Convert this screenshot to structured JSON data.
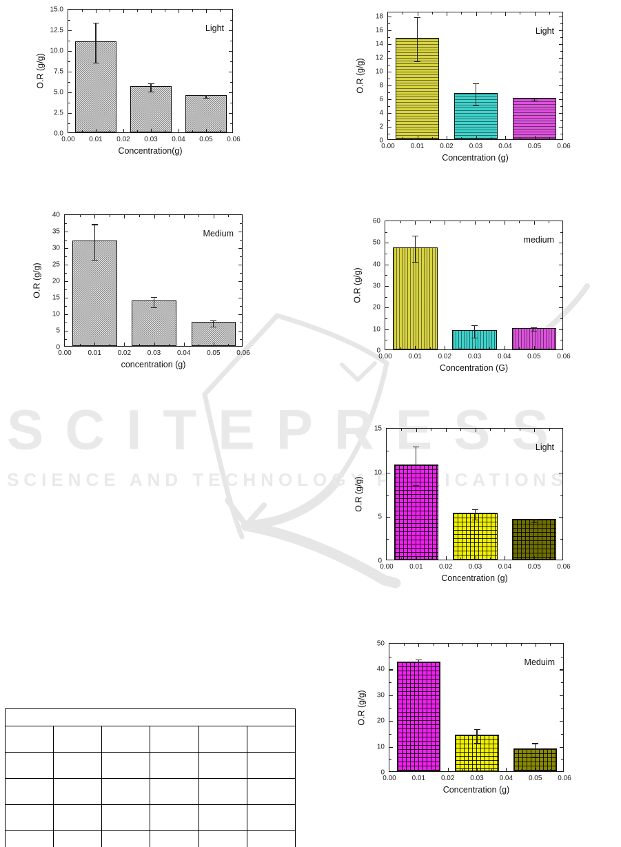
{
  "watermark": {
    "line1": "SCITEPRESS",
    "line2": "SCIENCE AND TECHNOLOGY PUBLICATIONS",
    "color": "#e9e9e9"
  },
  "chart_data": [
    {
      "id": "c1",
      "type": "bar",
      "legend": "Light",
      "xlabel": "Concentration(g)",
      "ylabel": "O.R (g/g)",
      "x": [
        0.01,
        0.03,
        0.05
      ],
      "values": [
        11.0,
        5.6,
        4.5
      ],
      "errors": [
        2.4,
        0.5,
        0.15
      ],
      "xlim": [
        0,
        0.06
      ],
      "xtick_labels": [
        "0.00",
        "0.01",
        "0.02",
        "0.03",
        "0.04",
        "0.05",
        "0.06"
      ],
      "ylim": [
        0,
        15
      ],
      "ytick_step": 2.5,
      "ytick_max": 15,
      "ytick_decimals": 1,
      "bar_width_x": 0.015,
      "bars": [
        {
          "fill": "#e2e2e2",
          "hatch": "checker"
        },
        {
          "fill": "#e2e2e2",
          "hatch": "checker"
        },
        {
          "fill": "#e2e2e2",
          "hatch": "checker"
        }
      ]
    },
    {
      "id": "c2",
      "type": "bar",
      "legend": "Light",
      "xlabel": "Concentration (g)",
      "ylabel": "O.R (g/g)",
      "x": [
        0.01,
        0.03,
        0.05
      ],
      "values": [
        14.7,
        6.7,
        6.0
      ],
      "errors": [
        3.2,
        1.6,
        0.15
      ],
      "xlim": [
        0,
        0.06
      ],
      "xtick_labels": [
        "0.00",
        "0.01",
        "0.02",
        "0.03",
        "0.04",
        "0.05",
        "0.06"
      ],
      "ylim": [
        0,
        18.6
      ],
      "ytick_step": 2,
      "ytick_max": 18,
      "ytick_decimals": 0,
      "bar_width_x": 0.015,
      "bars": [
        {
          "fill": "#d8d442",
          "hatch": "hlines"
        },
        {
          "fill": "#3ed3cc",
          "hatch": "hlines"
        },
        {
          "fill": "#dd52dd",
          "hatch": "hlines"
        }
      ]
    },
    {
      "id": "c3",
      "type": "bar",
      "legend": "Medium",
      "xlabel": "concentration (g)",
      "ylabel": "O.R (g/g)",
      "x": [
        0.01,
        0.03,
        0.05
      ],
      "values": [
        31.8,
        13.7,
        7.2
      ],
      "errors": [
        5.4,
        1.6,
        1.0
      ],
      "xlim": [
        0,
        0.06
      ],
      "xtick_labels": [
        "0.00",
        "0.01",
        "0.02",
        "0.03",
        "0.04",
        "0.05",
        "0.06"
      ],
      "ylim": [
        0,
        40
      ],
      "ytick_step": 5,
      "ytick_max": 40,
      "ytick_decimals": 0,
      "bar_width_x": 0.015,
      "bars": [
        {
          "fill": "#e2e2e2",
          "hatch": "checker"
        },
        {
          "fill": "#e2e2e2",
          "hatch": "checker"
        },
        {
          "fill": "#e2e2e2",
          "hatch": "checker"
        }
      ]
    },
    {
      "id": "c4",
      "type": "bar",
      "legend": "medium",
      "xlabel": "Concentration (G)",
      "ylabel": "O.R (g/g)",
      "x": [
        0.01,
        0.03,
        0.05
      ],
      "values": [
        47.2,
        9.0,
        10.0
      ],
      "errors": [
        6.0,
        2.8,
        0.8
      ],
      "xlim": [
        0,
        0.06
      ],
      "xtick_labels": [
        "0.00",
        "0.01",
        "0.02",
        "0.03",
        "0.04",
        "0.05",
        "0.06"
      ],
      "ylim": [
        0,
        60
      ],
      "ytick_step": 10,
      "ytick_max": 60,
      "ytick_decimals": 0,
      "bar_width_x": 0.015,
      "bars": [
        {
          "fill": "#d8d442",
          "hatch": "vlines"
        },
        {
          "fill": "#3ed3cc",
          "hatch": "vlines"
        },
        {
          "fill": "#dd52dd",
          "hatch": "vlines"
        }
      ]
    },
    {
      "id": "c5",
      "type": "bar",
      "legend": "Light",
      "xlabel": "Concentration (g)",
      "ylabel": "O.R (g/g)",
      "x": [
        0.01,
        0.03,
        0.05
      ],
      "values": [
        10.8,
        5.3,
        4.6
      ],
      "errors": [
        2.2,
        0.6,
        0.2
      ],
      "xlim": [
        0,
        0.06
      ],
      "xtick_labels": [
        "0.00",
        "0.01",
        "0.02",
        "0.03",
        "0.04",
        "0.05",
        "0.06"
      ],
      "ylim": [
        0,
        15
      ],
      "ytick_step": 5,
      "ytick_max": 15,
      "ytick_decimals": 0,
      "bar_width_x": 0.015,
      "bars": [
        {
          "fill": "#ee22ee",
          "hatch": "grid"
        },
        {
          "fill": "#f2f200",
          "hatch": "grid"
        },
        {
          "fill": "#6f6f00",
          "hatch": "grid"
        }
      ]
    },
    {
      "id": "c6",
      "type": "bar",
      "legend": "Meduim",
      "xlabel": "Concentration (g)",
      "ylabel": "O.R (g/g)",
      "x": [
        0.01,
        0.03,
        0.05
      ],
      "values": [
        42.5,
        14.2,
        8.8
      ],
      "errors": [
        1.3,
        2.7,
        2.6
      ],
      "xlim": [
        0,
        0.06
      ],
      "xtick_labels": [
        "0.00",
        "0.01",
        "0.02",
        "0.03",
        "0.04",
        "0.05",
        "0.06"
      ],
      "ylim": [
        0,
        50
      ],
      "ytick_step": 10,
      "ytick_max": 50,
      "ytick_decimals": 0,
      "bar_width_x": 0.015,
      "bars": [
        {
          "fill": "#ee22ee",
          "hatch": "grid"
        },
        {
          "fill": "#f2f200",
          "hatch": "grid"
        },
        {
          "fill": "#8a8a00",
          "hatch": "grid"
        }
      ]
    }
  ],
  "table": {
    "header": "",
    "rows": [
      [
        "",
        "",
        "",
        "",
        "",
        ""
      ],
      [
        "",
        "",
        "",
        "",
        "",
        ""
      ],
      [
        "",
        "",
        "",
        "",
        "",
        ""
      ],
      [
        "",
        "",
        "",
        "",
        "",
        ""
      ],
      [
        "",
        "",
        "",
        "",
        "",
        ""
      ]
    ]
  }
}
